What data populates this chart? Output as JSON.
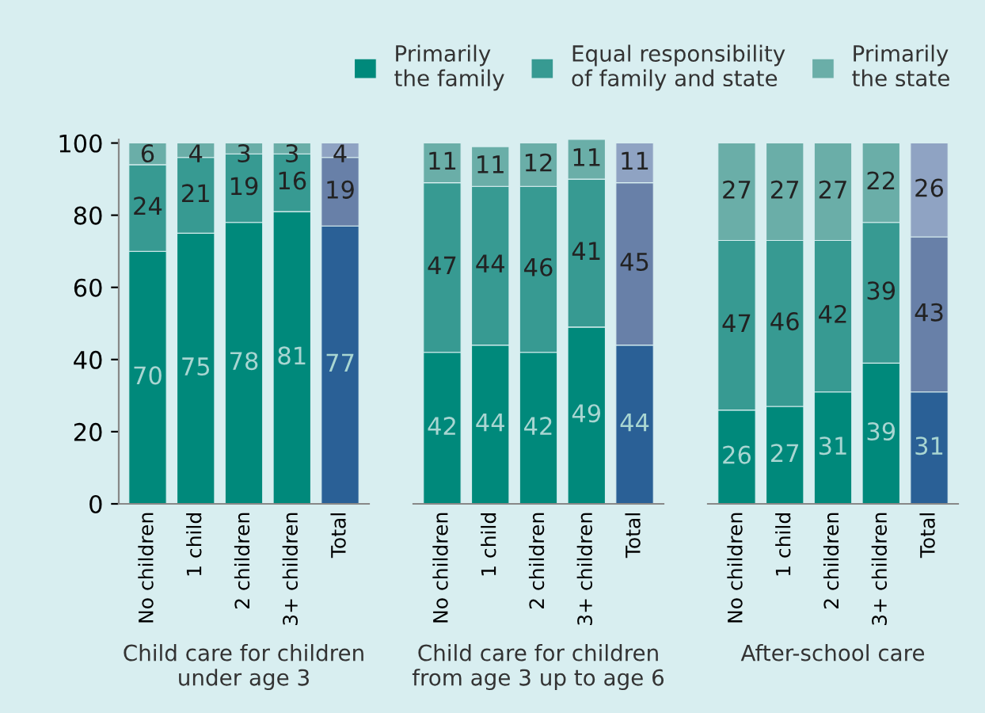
{
  "chart_data": [
    {
      "type": "bar",
      "stacked": true,
      "xlabel": "Child care for children\nunder age 3",
      "categories": [
        "No children",
        "1 child",
        "2 children",
        "3+ children",
        "Total"
      ],
      "ylim": [
        0,
        101
      ],
      "yticks": [
        0,
        20,
        40,
        60,
        80,
        100
      ],
      "data_labels": true,
      "legend": "top right",
      "grid": false,
      "series": [
        {
          "name": "Primarily\nthe family",
          "color": "#00897b",
          "colors": [
            "#00897b",
            "#00897b",
            "#00897b",
            "#00897b",
            "#2a6096"
          ],
          "values": [
            70,
            75,
            78,
            81,
            77
          ]
        },
        {
          "name": "Equal responsibility\nof family and state",
          "color": "#379a92",
          "colors": [
            "#379a92",
            "#379a92",
            "#379a92",
            "#379a92",
            "#6880a8"
          ],
          "values": [
            24,
            21,
            19,
            16,
            19
          ]
        },
        {
          "name": "Primarily\nthe state",
          "color": "#6aaea8",
          "colors": [
            "#6aaea8",
            "#6aaea8",
            "#6aaea8",
            "#6aaea8",
            "#8fa3c3"
          ],
          "values": [
            6,
            4,
            3,
            3,
            4
          ]
        }
      ]
    },
    {
      "type": "bar",
      "stacked": true,
      "xlabel": "Child care for children\nfrom age 3 up to age 6",
      "categories": [
        "No children",
        "1 child",
        "2 children",
        "3+ children",
        "Total"
      ],
      "ylim": [
        0,
        101
      ],
      "tick_labels": "x",
      "data_labels": true,
      "grid": false,
      "series": [
        {
          "colors": [
            "#00897b",
            "#00897b",
            "#00897b",
            "#00897b",
            "#2a6096"
          ],
          "values": [
            42,
            44,
            42,
            49,
            44
          ]
        },
        {
          "colors": [
            "#379a92",
            "#379a92",
            "#379a92",
            "#379a92",
            "#6880a8"
          ],
          "values": [
            47,
            44,
            46,
            41,
            45
          ]
        },
        {
          "colors": [
            "#6aaea8",
            "#6aaea8",
            "#6aaea8",
            "#6aaea8",
            "#8fa3c3"
          ],
          "values": [
            11,
            11,
            12,
            11,
            11
          ]
        }
      ]
    },
    {
      "type": "bar",
      "stacked": true,
      "xlabel": "After-school care",
      "categories": [
        "No children",
        "1 child",
        "2 children",
        "3+ children",
        "Total"
      ],
      "ylim": [
        0,
        101
      ],
      "tick_labels": "x",
      "data_labels": true,
      "grid": false,
      "series": [
        {
          "colors": [
            "#00897b",
            "#00897b",
            "#00897b",
            "#00897b",
            "#2a6096"
          ],
          "values": [
            26,
            27,
            31,
            39,
            31
          ]
        },
        {
          "colors": [
            "#379a92",
            "#379a92",
            "#379a92",
            "#379a92",
            "#6880a8"
          ],
          "values": [
            47,
            46,
            42,
            39,
            43
          ]
        },
        {
          "colors": [
            "#6aaea8",
            "#6aaea8",
            "#6aaea8",
            "#6aaea8",
            "#8fa3c3"
          ],
          "values": [
            27,
            27,
            27,
            22,
            26
          ]
        }
      ]
    }
  ]
}
